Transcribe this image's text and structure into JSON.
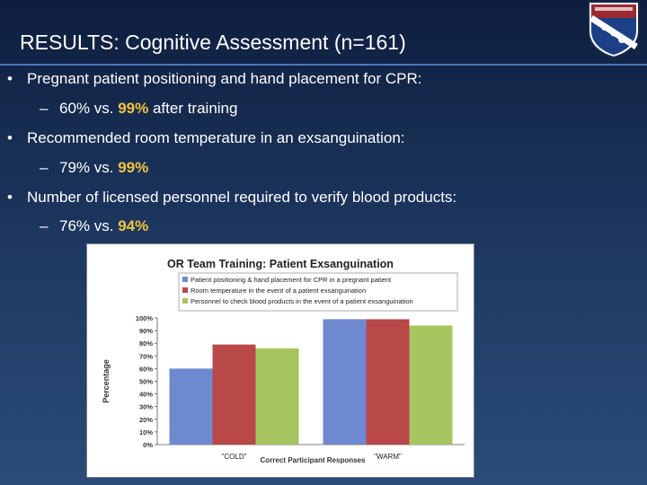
{
  "slide": {
    "title": "RESULTS: Cognitive Assessment (n=161)",
    "bullets": [
      {
        "text": "Pregnant patient positioning and hand placement for CPR:",
        "sub_a": "60% vs. ",
        "sub_hl": "99%",
        "sub_b": " after training"
      },
      {
        "text": "Recommended room temperature in an exsanguination:",
        "sub_a": "79% vs. ",
        "sub_hl": "99%",
        "sub_b": ""
      },
      {
        "text": "Number of licensed personnel required to verify blood products:",
        "sub_a": "76% vs. ",
        "sub_hl": "94%",
        "sub_b": ""
      }
    ],
    "highlight_color": "#f2c53d"
  },
  "chart_data": {
    "type": "bar",
    "title": "OR Team Training: Patient Exsanguination",
    "xlabel": "Correct Participant Responses",
    "ylabel": "Percentage",
    "categories": [
      "\"COLD\"",
      "\"WARM\""
    ],
    "series": [
      {
        "name": "Patient positioning & hand placement for CPR in a pregnant patient",
        "color": "#6f89d1",
        "values": [
          60,
          99
        ]
      },
      {
        "name": "Room temperature in the event of a patient exsanguination",
        "color": "#b94848",
        "values": [
          79,
          99
        ]
      },
      {
        "name": "Personnel to check blood products in the event of a patient exsanguination",
        "color": "#a6c55f",
        "values": [
          76,
          94
        ]
      }
    ],
    "yticks": [
      "0%",
      "10%",
      "20%",
      "30%",
      "40%",
      "50%",
      "60%",
      "70%",
      "80%",
      "90%",
      "100%"
    ],
    "ylim": [
      0,
      100
    ],
    "legend_position": "top",
    "grid": false
  }
}
